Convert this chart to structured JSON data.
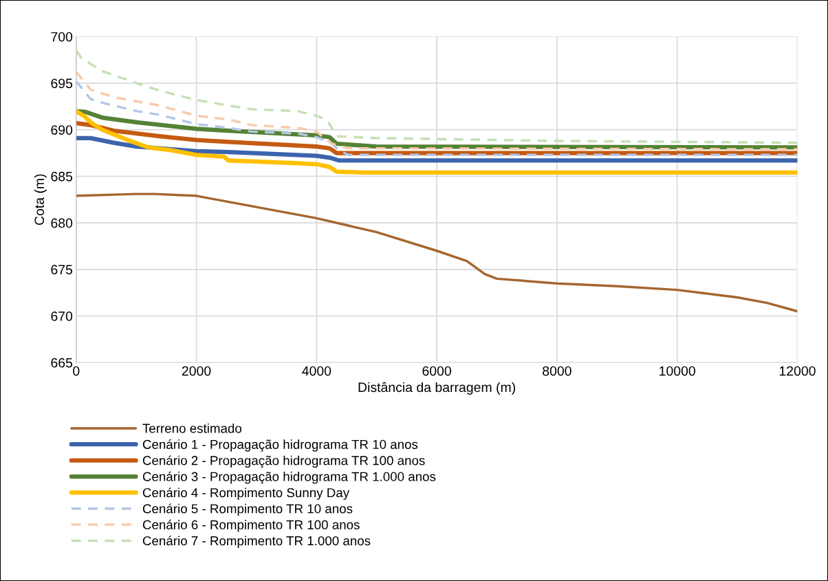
{
  "chart_data": {
    "type": "line",
    "xlabel": "Distância da barragem (m)",
    "ylabel": "Cota (m)",
    "xlim": [
      0,
      12000
    ],
    "xticks": [
      0,
      2000,
      4000,
      6000,
      8000,
      10000,
      12000
    ],
    "ylim": [
      665,
      700
    ],
    "yticks": [
      665,
      670,
      675,
      680,
      685,
      690,
      695,
      700
    ],
    "grid": true,
    "legend": "bottom",
    "series": [
      {
        "name": "Terreno estimado",
        "color": "#a5662f",
        "line_style": "solid",
        "x": [
          0,
          1000,
          1300,
          2000,
          3000,
          4000,
          5000,
          6000,
          6500,
          6800,
          7000,
          8000,
          9000,
          10000,
          11000,
          11500,
          12000
        ],
        "values": [
          682.9,
          683.1,
          683.1,
          682.9,
          681.7,
          680.5,
          679.0,
          677.0,
          675.9,
          674.5,
          674.0,
          673.5,
          673.2,
          672.8,
          672.0,
          671.4,
          670.5
        ]
      },
      {
        "name": "Cenário 1 - Propagação hidrograma TR 10 anos",
        "color": "#3c64ad",
        "line_style": "solid",
        "x": [
          0,
          241,
          623,
          1006,
          2000,
          2535,
          4000,
          4218,
          4371,
          5000,
          12000
        ],
        "values": [
          689.1,
          689.1,
          688.6,
          688.2,
          687.7,
          687.6,
          687.2,
          687.0,
          686.7,
          686.7,
          686.7
        ]
      },
      {
        "name": "Cenário 2 - Propagação hidrograma TR 100 anos",
        "color": "#c55a11",
        "line_style": "solid",
        "x": [
          0,
          241,
          623,
          1388,
          2000,
          2535,
          4000,
          4218,
          4333,
          5000,
          12000
        ],
        "values": [
          690.7,
          690.5,
          689.9,
          689.3,
          688.9,
          688.7,
          688.2,
          688.0,
          687.5,
          687.5,
          687.5
        ]
      },
      {
        "name": "Cenário 3 - Propagação hidrograma TR 1.000 anos",
        "color": "#548235",
        "line_style": "solid",
        "x": [
          0,
          164,
          432,
          1006,
          2000,
          2535,
          3683,
          4000,
          4218,
          4333,
          5000,
          12000
        ],
        "values": [
          692.0,
          691.9,
          691.3,
          690.8,
          690.1,
          689.9,
          689.5,
          689.4,
          689.2,
          688.5,
          688.2,
          688.1
        ]
      },
      {
        "name": "Cenário 4 - Rompimento Sunny Day",
        "color": "#ffc000",
        "line_style": "solid",
        "x": [
          0,
          145,
          241,
          432,
          815,
          1197,
          1579,
          2000,
          2459,
          2535,
          3683,
          4000,
          4218,
          4333,
          4800,
          12000
        ],
        "values": [
          692.0,
          691.4,
          690.8,
          690.0,
          689.0,
          688.1,
          687.8,
          687.3,
          687.1,
          686.7,
          686.4,
          686.3,
          686.0,
          685.5,
          685.4,
          685.4
        ]
      },
      {
        "name": "Cenário 5 - Rompimento TR 10 anos",
        "color": "#b4c7e7",
        "line_style": "dashed",
        "x": [
          0,
          241,
          432,
          1006,
          1388,
          2000,
          2535,
          2918,
          3683,
          4000,
          4218,
          4371,
          4524,
          5000,
          12000
        ],
        "values": [
          695.2,
          693.3,
          692.9,
          692.0,
          691.6,
          690.6,
          690.2,
          689.8,
          689.6,
          689.2,
          688.7,
          687.8,
          687.3,
          687.3,
          687.3
        ]
      },
      {
        "name": "Cenário 6 - Rompimento TR 100 anos",
        "color": "#f8cbad",
        "line_style": "dashed",
        "x": [
          0,
          241,
          623,
          1388,
          2000,
          2535,
          2918,
          3683,
          4000,
          4256,
          4524,
          5000,
          12000
        ],
        "values": [
          696.2,
          694.3,
          693.5,
          692.6,
          691.5,
          691.1,
          690.5,
          690.2,
          689.8,
          688.5,
          688.0,
          688.0,
          687.9
        ]
      },
      {
        "name": "Cenário 7 - Rompimento TR 1.000 anos",
        "color": "#c5e0b4",
        "line_style": "dashed",
        "x": [
          0,
          88,
          432,
          1006,
          1388,
          2000,
          2535,
          2918,
          3683,
          4000,
          4180,
          4333,
          5000,
          8000,
          12000
        ],
        "values": [
          698.5,
          697.7,
          696.3,
          695.0,
          694.2,
          693.2,
          692.6,
          692.2,
          692.0,
          691.5,
          691.0,
          689.3,
          689.1,
          688.8,
          688.6
        ]
      }
    ]
  }
}
